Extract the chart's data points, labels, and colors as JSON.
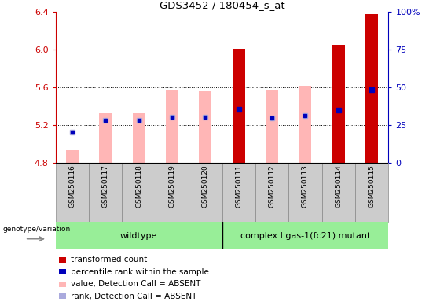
{
  "title": "GDS3452 / 180454_s_at",
  "samples": [
    "GSM250116",
    "GSM250117",
    "GSM250118",
    "GSM250119",
    "GSM250120",
    "GSM250111",
    "GSM250112",
    "GSM250113",
    "GSM250114",
    "GSM250115"
  ],
  "ylim_left": [
    4.8,
    6.4
  ],
  "ylim_right": [
    0,
    100
  ],
  "yticks_left": [
    4.8,
    5.2,
    5.6,
    6.0,
    6.4
  ],
  "yticks_right": [
    0,
    25,
    50,
    75,
    100
  ],
  "pink_val": [
    4.94,
    5.33,
    5.33,
    5.58,
    5.56,
    6.01,
    5.58,
    5.62,
    6.05,
    6.38
  ],
  "red_val": [
    4.94,
    5.28,
    5.33,
    5.55,
    5.56,
    6.01,
    5.58,
    5.6,
    6.05,
    6.38
  ],
  "blue_y": [
    5.13,
    5.255,
    5.255,
    5.285,
    5.285,
    5.37,
    5.28,
    5.3,
    5.365,
    5.58
  ],
  "lb_y": [
    5.13,
    5.255,
    5.255,
    5.285,
    5.285,
    5.37,
    5.28,
    5.3,
    5.365,
    5.58
  ],
  "is_red": [
    false,
    false,
    false,
    false,
    false,
    true,
    false,
    false,
    true,
    true
  ],
  "base_value": 4.8,
  "bar_width": 0.38,
  "colors": {
    "red_bar": "#CC0000",
    "pink_bar": "#FFB6B6",
    "blue_sq": "#0000BB",
    "lb_sq": "#AAAADD",
    "left_axis": "#CC0000",
    "right_axis": "#0000BB",
    "tick_bg": "#CCCCCC",
    "green_bg": "#98EE98",
    "green_bdr": "#44AA44"
  },
  "wildtype_label": "wildtype",
  "mutant_label": "complex I gas-1(fc21) mutant",
  "genotype_label": "genotype/variation",
  "legend": [
    {
      "color": "#CC0000",
      "label": "transformed count"
    },
    {
      "color": "#0000BB",
      "label": "percentile rank within the sample"
    },
    {
      "color": "#FFB6B6",
      "label": "value, Detection Call = ABSENT"
    },
    {
      "color": "#AAAADD",
      "label": "rank, Detection Call = ABSENT"
    }
  ]
}
